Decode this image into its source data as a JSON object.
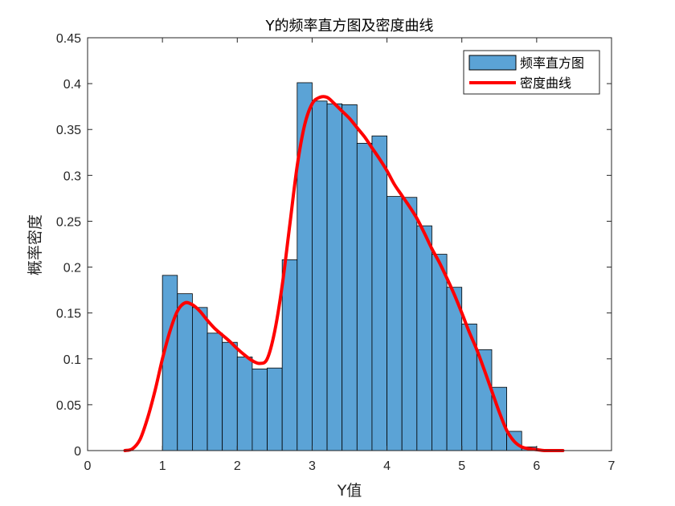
{
  "chart_data": {
    "type": "bar",
    "title": "Y的频率直方图及密度曲线",
    "xlabel": "Y值",
    "ylabel": "概率密度",
    "xlim": [
      0,
      7
    ],
    "ylim": [
      0,
      0.45
    ],
    "xticks": [
      0,
      1,
      2,
      3,
      4,
      5,
      6,
      7
    ],
    "yticks": [
      0,
      0.05,
      0.1,
      0.15,
      0.2,
      0.25,
      0.3,
      0.35,
      0.4,
      0.45
    ],
    "xtick_labels": [
      "0",
      "1",
      "2",
      "3",
      "4",
      "5",
      "6",
      "7"
    ],
    "ytick_labels": [
      "0",
      "0.05",
      "0.1",
      "0.15",
      "0.2",
      "0.25",
      "0.3",
      "0.35",
      "0.4",
      "0.45"
    ],
    "grid": false,
    "legend_position": "top-right",
    "histogram": {
      "name": "频率直方图",
      "color": "#5BA3D6",
      "edge_color": "#000000",
      "bin_start": 1.0,
      "bin_width": 0.2,
      "values": [
        0.191,
        0.171,
        0.156,
        0.128,
        0.118,
        0.102,
        0.089,
        0.09,
        0.208,
        0.401,
        0.381,
        0.378,
        0.377,
        0.335,
        0.343,
        0.277,
        0.276,
        0.245,
        0.214,
        0.178,
        0.138,
        0.11,
        0.069,
        0.021,
        0.004
      ]
    },
    "density_curve": {
      "name": "密度曲线",
      "color": "#FF0000",
      "x": [
        0.5,
        0.6,
        0.7,
        0.8,
        0.9,
        1.0,
        1.1,
        1.2,
        1.3,
        1.4,
        1.5,
        1.6,
        1.7,
        1.8,
        1.9,
        2.0,
        2.1,
        2.2,
        2.3,
        2.4,
        2.5,
        2.6,
        2.7,
        2.8,
        2.9,
        3.0,
        3.1,
        3.2,
        3.3,
        3.4,
        3.5,
        3.6,
        3.7,
        3.8,
        3.9,
        4.0,
        4.1,
        4.2,
        4.3,
        4.4,
        4.5,
        4.6,
        4.7,
        4.8,
        4.9,
        5.0,
        5.1,
        5.2,
        5.3,
        5.4,
        5.5,
        5.6,
        5.7,
        5.8,
        5.9,
        6.0,
        6.1,
        6.2,
        6.3,
        6.35
      ],
      "y": [
        0.0,
        0.002,
        0.012,
        0.035,
        0.065,
        0.1,
        0.13,
        0.152,
        0.161,
        0.159,
        0.152,
        0.142,
        0.133,
        0.126,
        0.119,
        0.111,
        0.104,
        0.098,
        0.095,
        0.1,
        0.13,
        0.18,
        0.245,
        0.31,
        0.355,
        0.378,
        0.385,
        0.385,
        0.378,
        0.37,
        0.362,
        0.352,
        0.342,
        0.33,
        0.318,
        0.305,
        0.29,
        0.278,
        0.266,
        0.253,
        0.237,
        0.22,
        0.205,
        0.188,
        0.17,
        0.15,
        0.129,
        0.11,
        0.088,
        0.065,
        0.042,
        0.022,
        0.01,
        0.004,
        0.002,
        0.001,
        0.0,
        0.0,
        0.0,
        0.0
      ]
    }
  }
}
